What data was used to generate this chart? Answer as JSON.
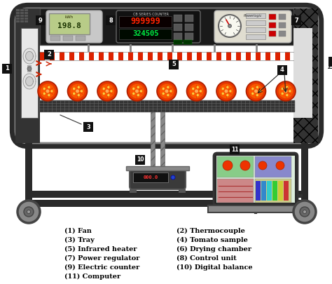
{
  "bg_color": "#ffffff",
  "legend_left": [
    "(1) Fan",
    "(3) Tray",
    "(5) Infrared heater",
    "(7) Power regulator",
    "(9) Electric counter",
    "(11) Computer"
  ],
  "legend_right": [
    "(2) Thermocouple",
    "(4) Tomato sample",
    "(6) Drying chamber",
    "(8) Control unit",
    "(10) Digital balance"
  ],
  "label_color": "#000000",
  "font_size": 7.0
}
